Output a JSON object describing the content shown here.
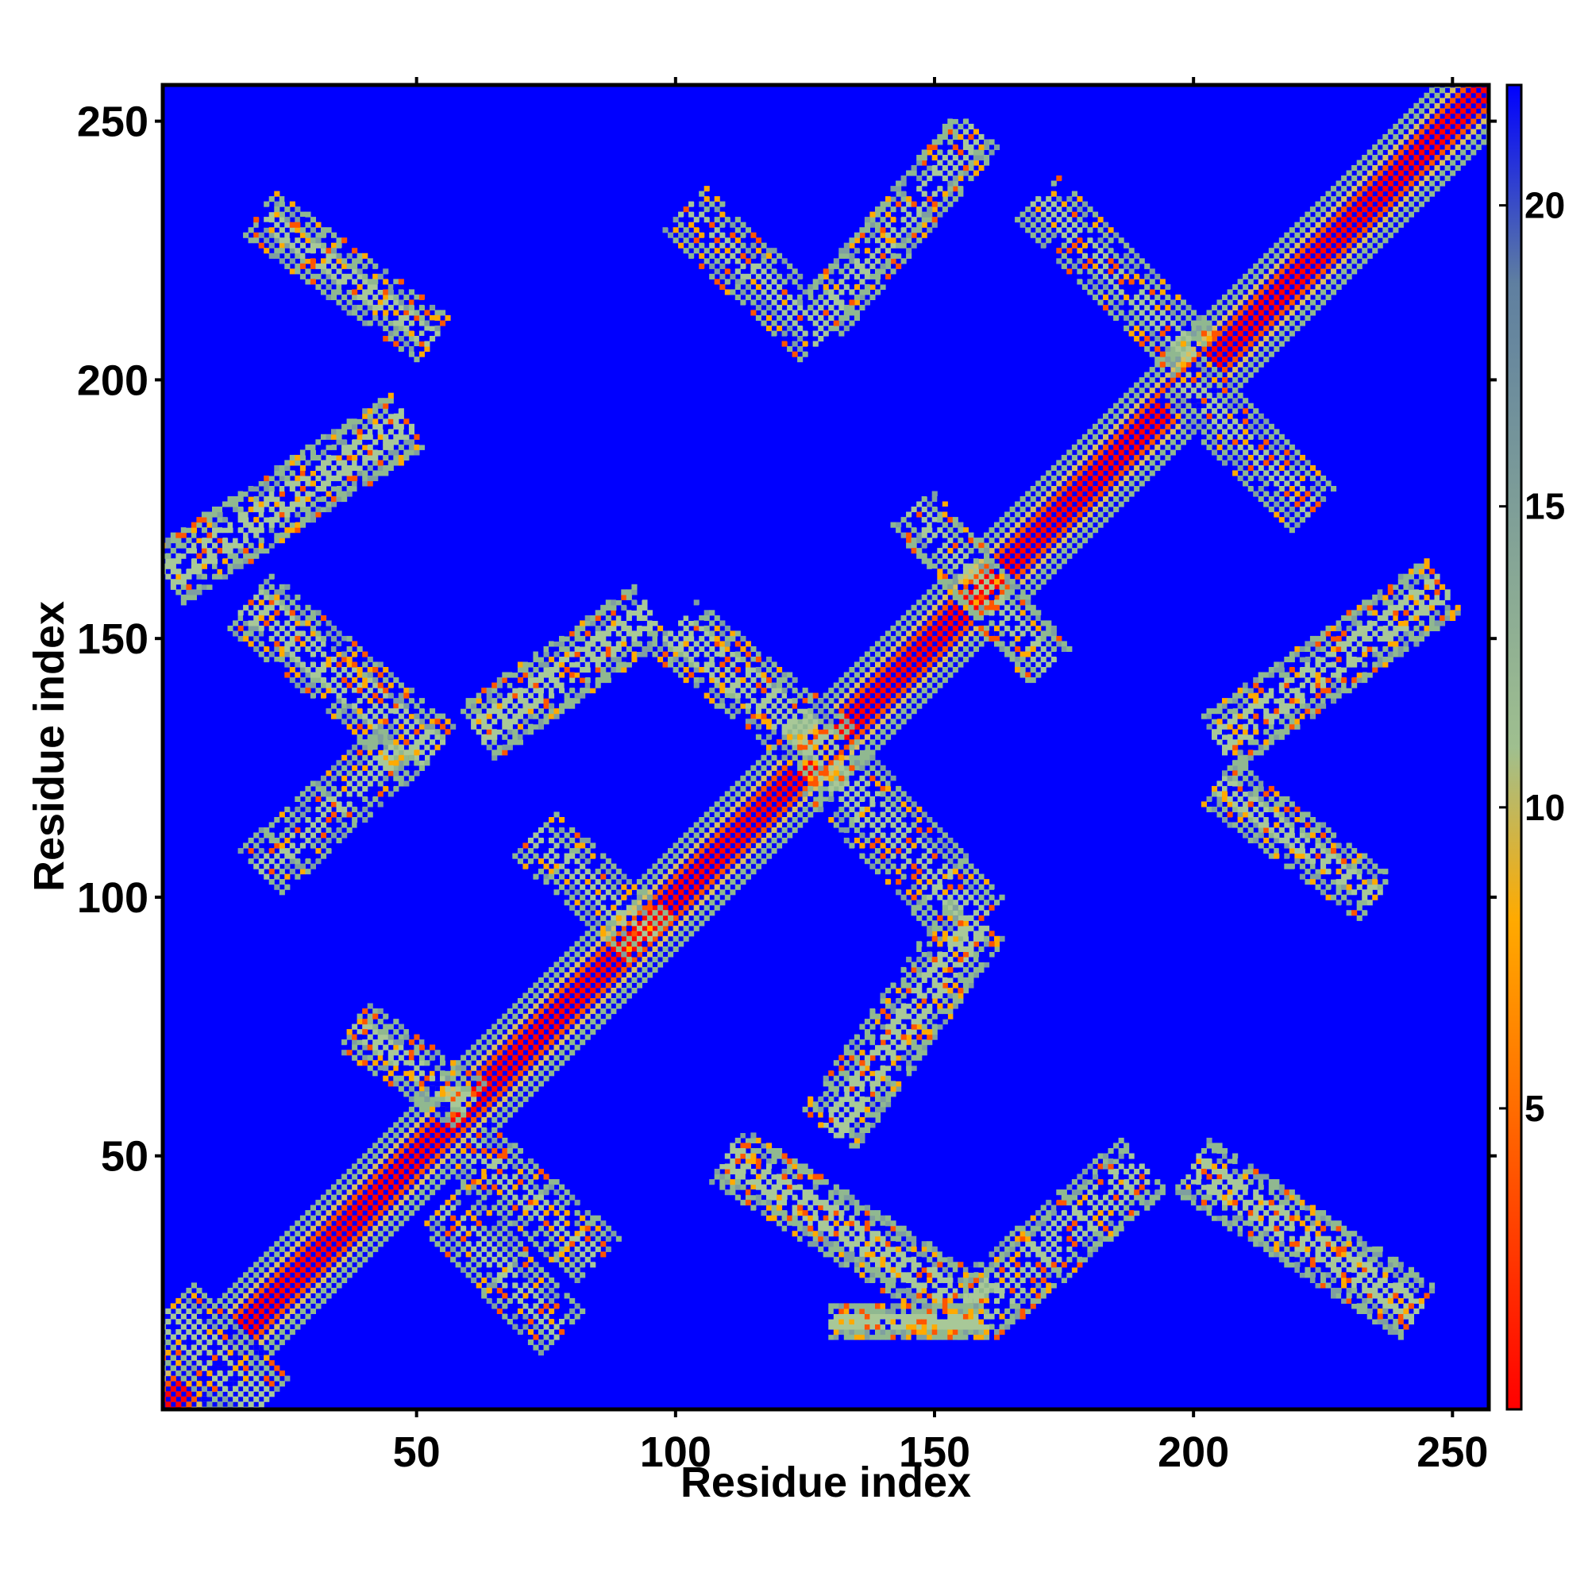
{
  "chart_data": {
    "type": "heatmap",
    "title": "",
    "xlabel": "Residue index",
    "ylabel": "Residue index",
    "xlim": [
      1,
      257
    ],
    "ylim": [
      1,
      257
    ],
    "xticks": [
      50,
      100,
      150,
      200,
      250
    ],
    "yticks": [
      50,
      100,
      150,
      200,
      250
    ],
    "colorbar": {
      "ticks": [
        5,
        10,
        15,
        20
      ],
      "range": [
        0,
        22
      ],
      "colors": [
        "#ff0000",
        "#ff7700",
        "#ffaa00",
        "#9fbf8f",
        "#5f7fa0",
        "#0000ff"
      ],
      "stops": [
        0.0,
        0.25,
        0.37,
        0.5,
        0.85,
        1.0
      ]
    },
    "background_color": "#0000ff",
    "bands": [
      {
        "from": [
          2,
          2
        ],
        "to": [
          257,
          257
        ],
        "width": 5
      },
      {
        "from": [
          2,
          20
        ],
        "to": [
          20,
          2
        ],
        "width": 5
      },
      {
        "from": [
          55,
          40
        ],
        "to": [
          78,
          16
        ],
        "width": 4
      },
      {
        "from": [
          20,
          232
        ],
        "to": [
          53,
          208
        ],
        "width": 4
      },
      {
        "from": [
          2,
          162
        ],
        "to": [
          48,
          192
        ],
        "width": 5
      },
      {
        "from": [
          18,
          157
        ],
        "to": [
          53,
          128
        ],
        "width": 5
      },
      {
        "from": [
          20,
          105
        ],
        "to": [
          48,
          130
        ],
        "width": 4
      },
      {
        "from": [
          38,
          75
        ],
        "to": [
          60,
          60
        ],
        "width": 4
      },
      {
        "from": [
          60,
          52
        ],
        "to": [
          85,
          30
        ],
        "width": 4
      },
      {
        "from": [
          62,
          132
        ],
        "to": [
          95,
          155
        ],
        "width": 5
      },
      {
        "from": [
          100,
          152
        ],
        "to": [
          130,
          128
        ],
        "width": 5
      },
      {
        "from": [
          130,
          125
        ],
        "to": [
          158,
          95
        ],
        "width": 5
      },
      {
        "from": [
          130,
          55
        ],
        "to": [
          158,
          95
        ],
        "width": 5
      },
      {
        "from": [
          73,
          112
        ],
        "to": [
          95,
          92
        ],
        "width": 4
      },
      {
        "from": [
          102,
          233
        ],
        "to": [
          128,
          208
        ],
        "width": 4
      },
      {
        "from": [
          128,
          212
        ],
        "to": [
          158,
          248
        ],
        "width": 4
      },
      {
        "from": [
          146,
          175
        ],
        "to": [
          172,
          145
        ],
        "width": 4
      },
      {
        "from": [
          170,
          235
        ],
        "to": [
          200,
          205
        ],
        "width": 4
      },
      {
        "from": [
          198,
          200
        ],
        "to": [
          223,
          175
        ],
        "width": 4
      },
      {
        "from": [
          205,
          130
        ],
        "to": [
          248,
          160
        ],
        "width": 5
      },
      {
        "from": [
          205,
          122
        ],
        "to": [
          235,
          100
        ],
        "width": 4
      },
      {
        "from": [
          110,
          50
        ],
        "to": [
          158,
          20
        ],
        "width": 5
      },
      {
        "from": [
          158,
          20
        ],
        "to": [
          190,
          48
        ],
        "width": 5
      },
      {
        "from": [
          200,
          48
        ],
        "to": [
          243,
          20
        ],
        "width": 5
      },
      {
        "from": [
          130,
          18
        ],
        "to": [
          160,
          18
        ],
        "width": 3
      }
    ]
  }
}
